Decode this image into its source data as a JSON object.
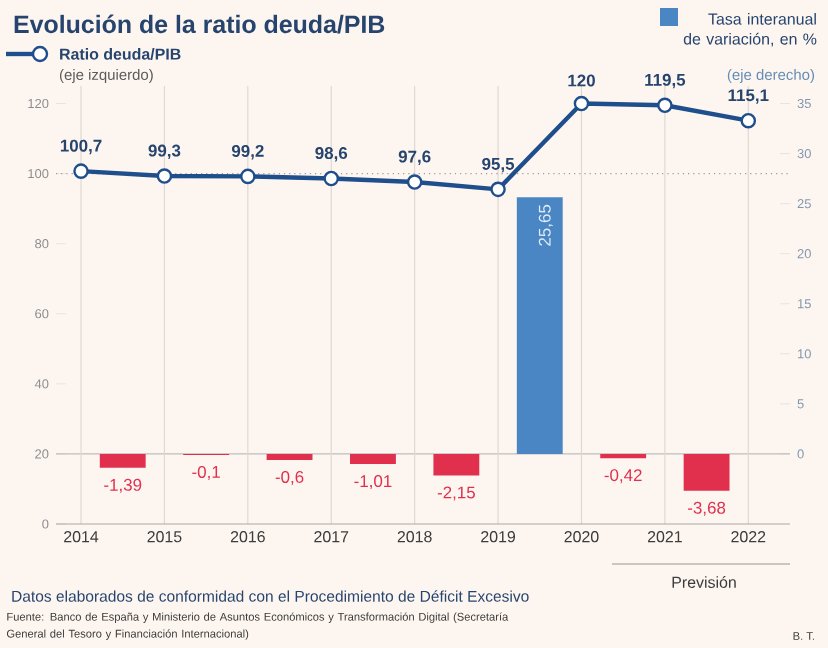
{
  "chart_data": {
    "type": "line",
    "title": "Evolución de la ratio deuda/PIB",
    "ylabel": "(eje izquierdo)",
    "y2label": "(eje derecho)",
    "xlim": [
      2013.7,
      2022.5
    ],
    "xticks": [
      2014,
      2015,
      2016,
      2017,
      2018,
      2019,
      2020,
      2021,
      2022
    ],
    "ylim": [
      0,
      125
    ],
    "yticks": [
      0,
      20,
      40,
      60,
      80,
      100,
      120
    ],
    "y2lim": [
      -7,
      36.75
    ],
    "y2ticks": [
      0,
      5,
      10,
      15,
      20,
      25,
      30,
      35
    ],
    "grid": "x",
    "legend": "top",
    "marker": "circle",
    "line_style": "solid",
    "series": [
      {
        "name": "Ratio deuda/PIB",
        "color": "#1f4e8c",
        "x": [
          2014,
          2015,
          2016,
          2017,
          2018,
          2019,
          2020,
          2021,
          2022
        ],
        "values": [
          100.7,
          99.3,
          99.2,
          98.6,
          97.6,
          95.5,
          120,
          119.5,
          115.1
        ],
        "value_labels": [
          "100,7",
          "99,3",
          "99,2",
          "98,6",
          "97,6",
          "95,5",
          "120",
          "119,5",
          "115,1"
        ]
      },
      {
        "name": "Tasa interanual de variación, en %",
        "type": "bar",
        "axis": "y2",
        "x": [
          2014.5,
          2015.5,
          2016.5,
          2017.5,
          2018.5,
          2019.5,
          2020.5,
          2021.5
        ],
        "values": [
          -1.39,
          -0.1,
          -0.6,
          -1.01,
          -2.15,
          25.65,
          -0.42,
          -3.68
        ],
        "colors": [
          "#e0304e",
          "#e0304e",
          "#e0304e",
          "#e0304e",
          "#e0304e",
          "#4a86c4",
          "#e0304e",
          "#e0304e"
        ],
        "value_labels": [
          "-1,39",
          "-0,1",
          "-0,6",
          "-1,01",
          "-2,15",
          "25,65",
          "-0,42",
          "-3,68"
        ]
      }
    ],
    "ref_lines": [
      {
        "axis": "y",
        "value": 100,
        "color": "#9a9a9a",
        "line_style": "dotted"
      },
      {
        "axis": "y2",
        "value": 0,
        "color": "#bdbdbd",
        "line_style": "solid"
      }
    ],
    "annotations": [
      "Previsión",
      "Datos elaborados de conformidad con el Procedimiento de Déficit Excesivo",
      "Fuente: Banco de España y Ministerio de Asuntos Económicos y Transformación Digital (Secretaría General del Tesoro y Financiación Internacional)",
      "B. T."
    ]
  }
}
